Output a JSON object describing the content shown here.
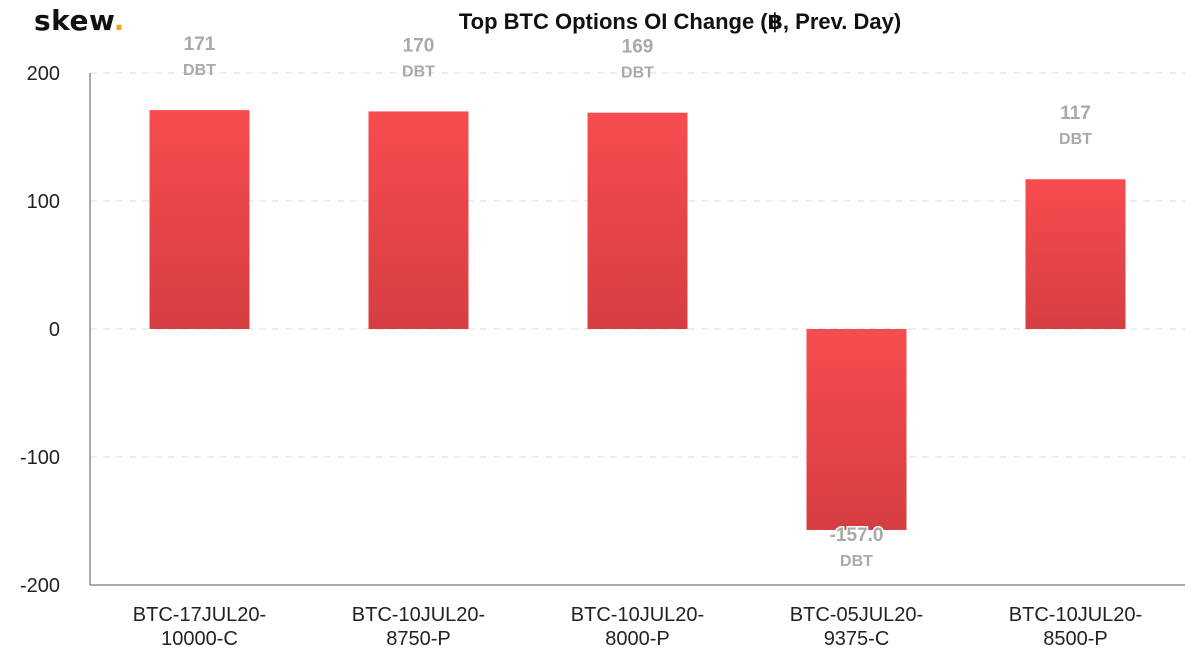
{
  "logo": {
    "text": "skew",
    "dot": "."
  },
  "colors": {
    "bar_top": "#f74c4f",
    "bar_bottom": "#d63e42",
    "label": "#a9a9a9",
    "grid": "#dddddd",
    "axis": "#555555",
    "logo_dot": "#f3a317"
  },
  "chart_data": {
    "type": "bar",
    "title": "Top BTC Options OI Change (฿, Prev. Day)",
    "xlabel": "",
    "ylabel": "",
    "ylim": [
      -200,
      200
    ],
    "yticks": [
      "200",
      "100",
      "0",
      "-100",
      "-200"
    ],
    "ytick_values": [
      200,
      100,
      0,
      -100,
      -200
    ],
    "grid": true,
    "categories": [
      [
        "BTC-17JUL20-",
        "10000-C"
      ],
      [
        "BTC-10JUL20-",
        "8750-P"
      ],
      [
        "BTC-10JUL20-",
        "8000-P"
      ],
      [
        "BTC-05JUL20-",
        "9375-C"
      ],
      [
        "BTC-10JUL20-",
        "8500-P"
      ]
    ],
    "values": [
      171,
      170,
      169,
      -157,
      117
    ],
    "data_labels": [
      "171",
      "170",
      "169",
      "-157.0",
      "117"
    ],
    "data_label_unit": "DBT"
  }
}
